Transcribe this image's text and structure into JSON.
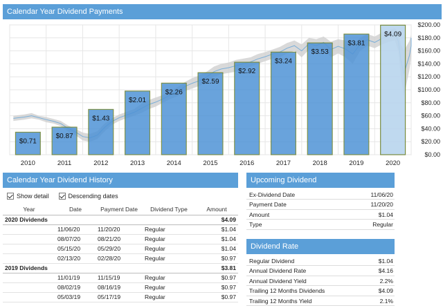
{
  "chart": {
    "title": "Calendar Year Dividend Payments"
  },
  "chart_data": {
    "type": "bar",
    "categories": [
      "2010",
      "2011",
      "2012",
      "2013",
      "2014",
      "2015",
      "2016",
      "2017",
      "2018",
      "2019",
      "2020"
    ],
    "values": [
      0.71,
      0.87,
      1.43,
      2.01,
      2.26,
      2.59,
      2.92,
      3.24,
      3.53,
      3.81,
      4.09
    ],
    "bar_labels": [
      "$0.71",
      "$0.87",
      "$1.43",
      "$2.01",
      "$2.26",
      "$2.59",
      "$2.92",
      "$3.24",
      "$3.53",
      "$3.81",
      "$4.09"
    ],
    "ylim": [
      0,
      4.1
    ],
    "right_axis": {
      "ticks": [
        "$200.00",
        "$180.00",
        "$160.00",
        "$140.00",
        "$120.00",
        "$100.00",
        "$80.00",
        "$60.00",
        "$40.00",
        "$20.00",
        "$0.00"
      ],
      "values": [
        200,
        180,
        160,
        140,
        120,
        100,
        80,
        60,
        40,
        20,
        0
      ],
      "ylim": [
        0,
        200
      ]
    },
    "price_series": {
      "x": [
        2009.6,
        2009.9,
        2010.1,
        2010.3,
        2010.5,
        2010.7,
        2010.9,
        2011.1,
        2011.3,
        2011.5,
        2011.7,
        2011.9,
        2012.1,
        2012.3,
        2012.5,
        2012.7,
        2012.9,
        2013.1,
        2013.3,
        2013.5,
        2013.7,
        2013.9,
        2014.1,
        2014.3,
        2014.5,
        2014.7,
        2014.9,
        2015.1,
        2015.3,
        2015.5,
        2015.7,
        2015.9,
        2016.1,
        2016.3,
        2016.5,
        2016.7,
        2016.9,
        2017.1,
        2017.3,
        2017.5,
        2017.7,
        2017.9,
        2018.1,
        2018.3,
        2018.5,
        2018.7,
        2018.9,
        2019.1,
        2019.3,
        2019.5,
        2019.7,
        2019.9,
        2020.05,
        2020.15,
        2020.22,
        2020.3,
        2020.45,
        2020.6,
        2020.75,
        2020.9,
        2021.0
      ],
      "high": [
        60,
        62,
        64,
        60,
        58,
        55,
        52,
        45,
        40,
        34,
        32,
        36,
        48,
        56,
        62,
        66,
        70,
        78,
        84,
        88,
        92,
        98,
        104,
        112,
        118,
        122,
        128,
        136,
        140,
        142,
        146,
        148,
        150,
        155,
        158,
        162,
        166,
        172,
        176,
        170,
        180,
        178,
        182,
        174,
        178,
        176,
        170,
        180,
        186,
        182,
        188,
        192,
        195,
        190,
        170,
        160,
        175,
        185,
        188,
        190,
        192
      ],
      "low": [
        52,
        54,
        56,
        54,
        50,
        48,
        44,
        36,
        30,
        22,
        20,
        24,
        36,
        46,
        52,
        56,
        60,
        64,
        70,
        74,
        80,
        86,
        90,
        98,
        102,
        106,
        112,
        120,
        124,
        126,
        128,
        132,
        136,
        140,
        144,
        148,
        150,
        156,
        160,
        150,
        162,
        158,
        164,
        150,
        156,
        150,
        140,
        160,
        168,
        164,
        170,
        174,
        176,
        160,
        120,
        90,
        130,
        150,
        160,
        165,
        168
      ]
    },
    "grid": true
  },
  "history": {
    "title": "Calendar Year Dividend History",
    "show_detail_label": "Show detail",
    "descending_label": "Descending dates",
    "columns": [
      "Year",
      "Date",
      "Payment Date",
      "Dividend Type",
      "Amount"
    ],
    "groups": [
      {
        "label": "2020 Dividends",
        "total": "$4.09",
        "rows": [
          {
            "date": "11/06/20",
            "payment": "11/20/20",
            "type": "Regular",
            "amount": "$1.04"
          },
          {
            "date": "08/07/20",
            "payment": "08/21/20",
            "type": "Regular",
            "amount": "$1.04"
          },
          {
            "date": "05/15/20",
            "payment": "05/29/20",
            "type": "Regular",
            "amount": "$1.04"
          },
          {
            "date": "02/13/20",
            "payment": "02/28/20",
            "type": "Regular",
            "amount": "$0.97"
          }
        ]
      },
      {
        "label": "2019 Dividends",
        "total": "$3.81",
        "rows": [
          {
            "date": "11/01/19",
            "payment": "11/15/19",
            "type": "Regular",
            "amount": "$0.97"
          },
          {
            "date": "08/02/19",
            "payment": "08/16/19",
            "type": "Regular",
            "amount": "$0.97"
          },
          {
            "date": "05/03/19",
            "payment": "05/17/19",
            "type": "Regular",
            "amount": "$0.97"
          }
        ]
      }
    ]
  },
  "upcoming": {
    "title": "Upcoming Dividend",
    "rows": [
      {
        "label": "Ex-Dividend Date",
        "value": "11/06/20"
      },
      {
        "label": "Payment Date",
        "value": "11/20/20"
      },
      {
        "label": "Amount",
        "value": "$1.04"
      },
      {
        "label": "Type",
        "value": "Regular"
      }
    ]
  },
  "rate": {
    "title": "Dividend Rate",
    "rows": [
      {
        "label": "Regular Dividend",
        "value": "$1.04"
      },
      {
        "label": "Annual Dividend Rate",
        "value": "$4.16"
      },
      {
        "label": "Annual Dividend Yield",
        "value": "2.2%"
      },
      {
        "label": "Trailing 12 Months Dividends",
        "value": "$4.09"
      },
      {
        "label": "Trailing 12 Months Yield",
        "value": "2.1%"
      }
    ]
  },
  "colors": {
    "header": "#5b9fd8",
    "bar_fill": "#4f93d6",
    "bar_fill_last": "#b9d5ee",
    "bar_stroke": "#6a7f2a",
    "price_area": "#d0d0d0",
    "price_line": "#7aaed8"
  }
}
